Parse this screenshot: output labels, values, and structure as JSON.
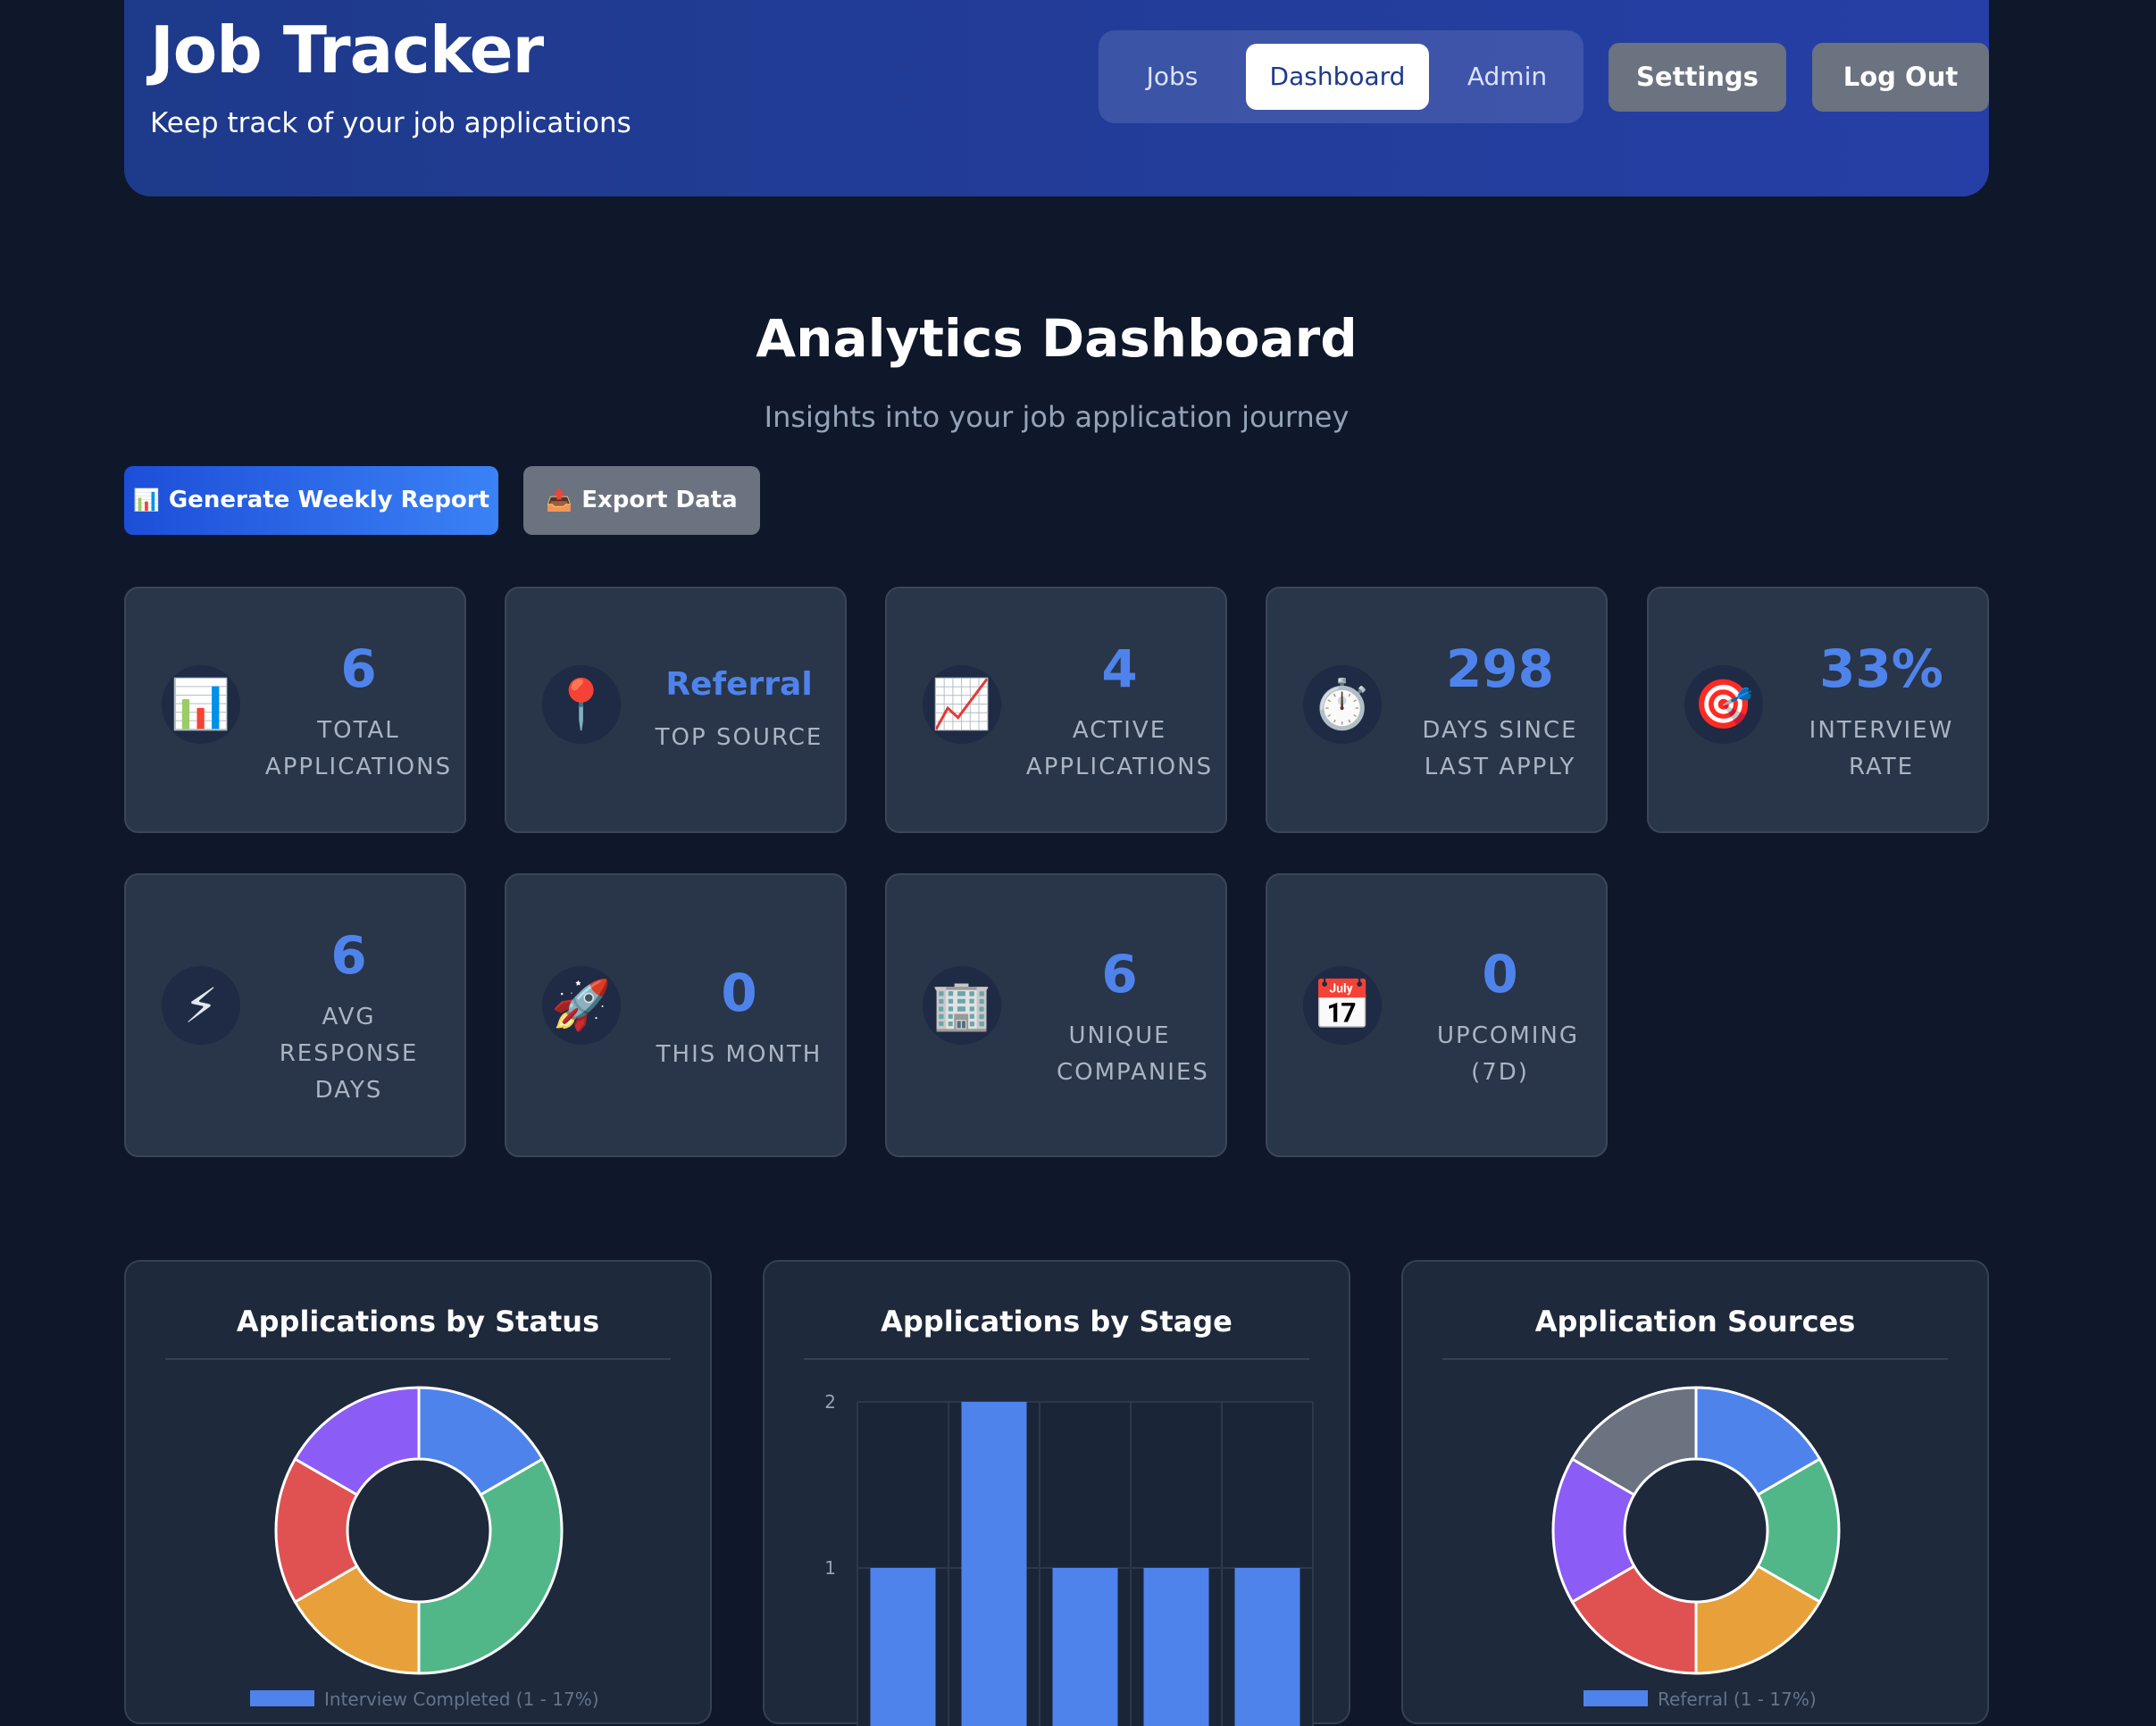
{
  "header": {
    "title": "Job Tracker",
    "subtitle": "Keep track of your job applications",
    "tabs": [
      {
        "label": "Jobs",
        "active": false
      },
      {
        "label": "Dashboard",
        "active": true
      },
      {
        "label": "Admin",
        "active": false
      }
    ],
    "settings_label": "Settings",
    "logout_label": "Log Out"
  },
  "dashboard": {
    "title": "Analytics Dashboard",
    "subtitle": "Insights into your job application journey"
  },
  "actions": {
    "generate_icon": "📊",
    "generate_label": "Generate Weekly Report",
    "export_icon": "📤",
    "export_label": "Export Data"
  },
  "stats": [
    {
      "icon": "📊",
      "icon_name": "bar-chart-icon",
      "value": "6",
      "label": "Total Applications"
    },
    {
      "icon": "📍",
      "icon_name": "pin-icon",
      "value": "Referral",
      "label": "Top Source"
    },
    {
      "icon": "📈",
      "icon_name": "trend-up-icon",
      "value": "4",
      "label": "Active Applications"
    },
    {
      "icon": "⏱️",
      "icon_name": "stopwatch-icon",
      "value": "298",
      "label": "Days Since Last Apply"
    },
    {
      "icon": "🎯",
      "icon_name": "target-icon",
      "value": "33%",
      "label": "Interview Rate"
    },
    {
      "icon": "⚡",
      "icon_name": "lightning-icon",
      "value": "6",
      "label": "Avg Response Days"
    },
    {
      "icon": "🚀",
      "icon_name": "rocket-icon",
      "value": "0",
      "label": "This Month"
    },
    {
      "icon": "🏢",
      "icon_name": "building-icon",
      "value": "6",
      "label": "Unique Companies"
    },
    {
      "icon": "📅",
      "icon_name": "calendar-icon",
      "value": "0",
      "label": "Upcoming (7D)"
    }
  ],
  "colors": {
    "accent": "#4f83ec",
    "background": "#0f172a",
    "card": "#293548",
    "header": "#263fa6"
  },
  "chart_data": [
    {
      "type": "pie",
      "title": "Applications by Status",
      "values": [
        1,
        2,
        1,
        1,
        1
      ],
      "colors": [
        "#4f83ec",
        "#52b788",
        "#e8a13a",
        "#e05252",
        "#8b5cf6"
      ],
      "legend_first": "Interview Completed (1 - 17%)",
      "legend_placement": "bottom"
    },
    {
      "type": "bar",
      "title": "Applications by Stage",
      "values": [
        1,
        2,
        1,
        1,
        1
      ],
      "yticks": [
        "1",
        "2"
      ],
      "ylim": [
        0,
        2
      ]
    },
    {
      "type": "pie",
      "title": "Application Sources",
      "values": [
        1,
        1,
        1,
        1,
        1,
        1
      ],
      "colors": [
        "#4f83ec",
        "#52b788",
        "#e8a13a",
        "#e05252",
        "#8b5cf6",
        "#6b7280"
      ],
      "legend_first": "Referral (1 - 17%)",
      "legend_placement": "bottom"
    }
  ]
}
